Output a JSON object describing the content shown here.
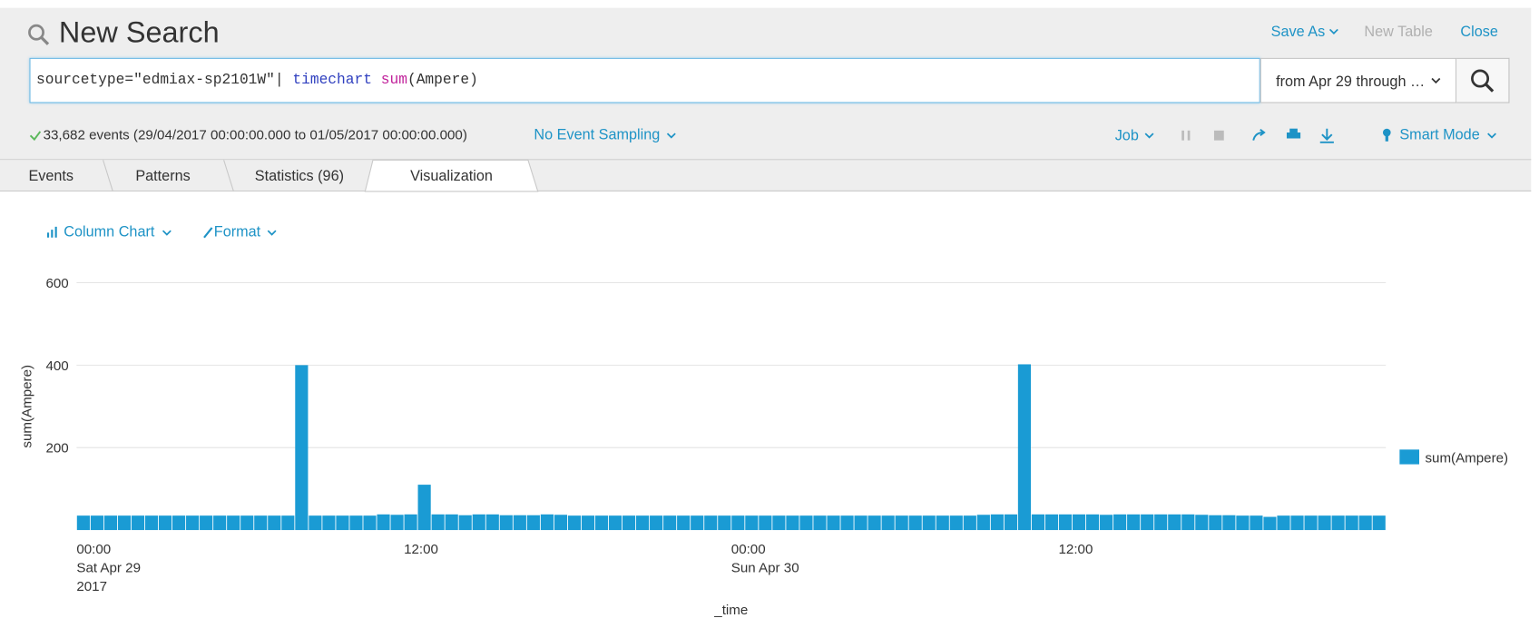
{
  "header": {
    "title": "New Search",
    "actions": [
      "Save As",
      "New Table",
      "Close"
    ]
  },
  "search": {
    "query": [
      "sourcetype=\"edmiax-sp2101W\"| ",
      "timechart",
      " ",
      "sum",
      "(Ampere)"
    ],
    "time_range": "from Apr 29 through …"
  },
  "status": {
    "events": "33,682 events (29/04/2017 00:00:00.000 to 01/05/2017 00:00:00.000)",
    "sampling": "No Event Sampling",
    "job": "Job",
    "mode": "Smart Mode"
  },
  "tabs": [
    "Events",
    "Patterns",
    "Statistics (96)",
    "Visualization"
  ],
  "viz_controls": [
    "Column Chart",
    "Format"
  ],
  "chart_data": {
    "type": "bar",
    "x_label": "_time",
    "y_label": "sum(Ampere)",
    "categories": [
      [
        "00:00",
        "Sat Apr 29",
        "2017"
      ],
      null,
      null,
      null,
      null,
      null,
      null,
      null,
      null,
      null,
      null,
      null,
      null,
      null,
      null,
      null,
      null,
      null,
      null,
      null,
      null,
      null,
      null,
      null,
      [
        "12:00"
      ],
      null,
      null,
      null,
      null,
      null,
      null,
      null,
      null,
      null,
      null,
      null,
      null,
      null,
      null,
      null,
      null,
      null,
      null,
      null,
      null,
      null,
      null,
      null,
      [
        "00:00",
        "Sun Apr 30"
      ],
      null,
      null,
      null,
      null,
      null,
      null,
      null,
      null,
      null,
      null,
      null,
      null,
      null,
      null,
      null,
      null,
      null,
      null,
      null,
      null,
      null,
      null,
      null,
      [
        "12:00"
      ],
      null,
      null,
      null,
      null,
      null,
      null,
      null,
      null,
      null,
      null,
      null,
      null,
      null,
      null,
      null,
      null,
      null,
      null,
      null,
      null,
      null,
      null,
      null
    ],
    "series": [
      {
        "name": "sum(Ampere)",
        "color": "#1a9bd4",
        "values": [
          35,
          35,
          35,
          35,
          35,
          35,
          35,
          35,
          35,
          35,
          35,
          35,
          35,
          35,
          35,
          35,
          400,
          35,
          35,
          35,
          35,
          35,
          38,
          37,
          38,
          110,
          38,
          38,
          36,
          38,
          38,
          36,
          36,
          36,
          38,
          37,
          35,
          35,
          35,
          35,
          35,
          35,
          35,
          35,
          35,
          35,
          35,
          35,
          35,
          35,
          35,
          35,
          35,
          35,
          35,
          35,
          35,
          35,
          35,
          35,
          35,
          35,
          35,
          35,
          35,
          35,
          37,
          38,
          38,
          402,
          38,
          38,
          38,
          38,
          38,
          37,
          38,
          38,
          38,
          38,
          38,
          38,
          37,
          36,
          36,
          35,
          35,
          32,
          35,
          35,
          35,
          35,
          35,
          35,
          35,
          35
        ]
      }
    ],
    "ylim": [
      0,
      600
    ],
    "yticks": [
      200,
      400,
      600
    ],
    "grid": true,
    "legend": "right"
  }
}
